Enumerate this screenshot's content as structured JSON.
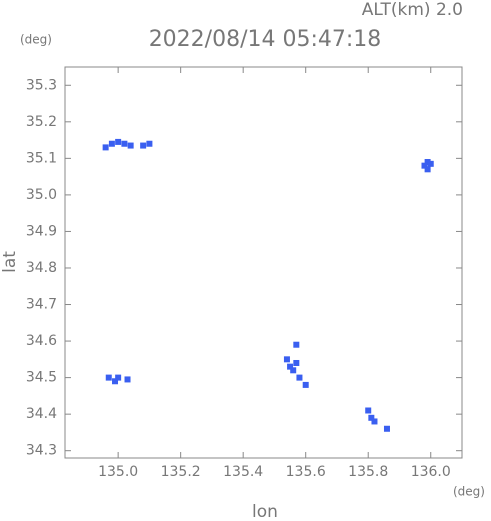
{
  "chart_data": {
    "type": "scatter",
    "subtitle": "ALT(km) 2.0",
    "title": "2022/08/14 05:47:18",
    "y_unit": "(deg)",
    "x_unit": "(deg)",
    "x_label": "lon",
    "y_label": "lat",
    "xlim": [
      134.83,
      136.1
    ],
    "ylim": [
      34.28,
      35.35
    ],
    "xticks": [
      {
        "value": 135,
        "label": "135.0"
      },
      135.2,
      135.4,
      135.6,
      135.8,
      {
        "value": 136,
        "label": "136.0"
      }
    ],
    "yticks": [
      34.3,
      34.4,
      34.5,
      34.6,
      34.7,
      34.8,
      34.9,
      {
        "value": 35,
        "label": "35.0"
      },
      35.1,
      35.2,
      35.3
    ],
    "series": [
      {
        "color": "#3a5ff0",
        "x": [
          134.96,
          134.98,
          135.0,
          135.02,
          135.04,
          135.08,
          135.1,
          135.98,
          135.99,
          136.0,
          135.99,
          134.97,
          134.99,
          135.0,
          135.03,
          135.54,
          135.55,
          135.56,
          135.57,
          135.58,
          135.6,
          135.57,
          135.8,
          135.81,
          135.82,
          135.86
        ],
        "y": [
          35.13,
          35.14,
          35.145,
          35.14,
          35.135,
          35.135,
          35.14,
          35.08,
          35.09,
          35.085,
          35.07,
          34.5,
          34.49,
          34.5,
          34.495,
          34.55,
          34.53,
          34.52,
          34.54,
          34.5,
          34.48,
          34.59,
          34.41,
          34.39,
          34.38,
          34.36
        ]
      }
    ]
  }
}
